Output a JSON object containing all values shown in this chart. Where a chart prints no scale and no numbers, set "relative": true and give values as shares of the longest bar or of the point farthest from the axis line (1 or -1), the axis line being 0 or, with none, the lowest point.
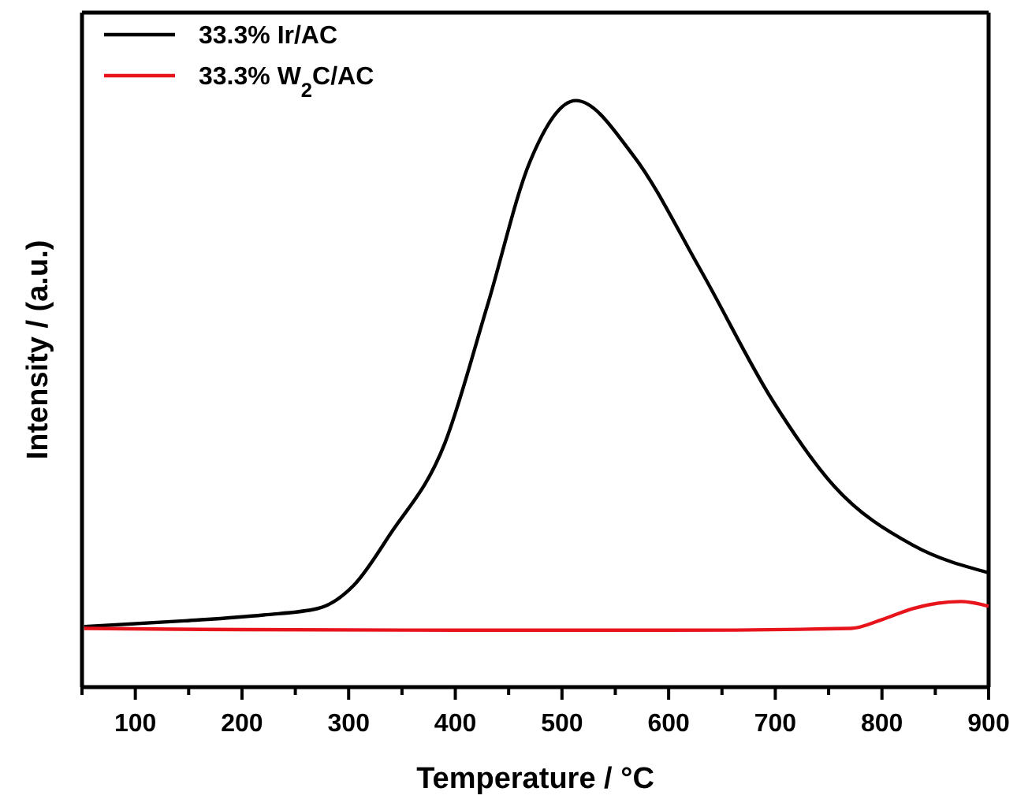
{
  "chart_data": {
    "type": "line",
    "xlabel": "Temperature / °C",
    "ylabel": "Intensity / (a.u.)",
    "relative": true,
    "xlim": [
      50,
      900
    ],
    "xticks": [
      {
        "value": 50,
        "label": null
      },
      100,
      {
        "value": 150,
        "label": null
      },
      200,
      {
        "value": 250,
        "label": null
      },
      300,
      {
        "value": 350,
        "label": null
      },
      400,
      {
        "value": 450,
        "label": null
      },
      500,
      {
        "value": 550,
        "label": null
      },
      600,
      {
        "value": 650,
        "label": null
      },
      700,
      {
        "value": 750,
        "label": null
      },
      800,
      {
        "value": 850,
        "label": null
      },
      900
    ],
    "legend": "top left",
    "grid": false,
    "line_style": "solid",
    "marker": "none",
    "series": [
      {
        "name": "33.3% Ir/AC",
        "color": "#000000",
        "x": [
          52,
          146,
          220,
          271,
          305,
          339,
          390,
          430,
          470,
          513,
          567,
          630,
          698,
          755,
          829,
          900
        ],
        "values": [
          0.103,
          0.113,
          0.123,
          0.134,
          0.174,
          0.261,
          0.415,
          0.65,
          0.896,
          1.0,
          0.906,
          0.711,
          0.487,
          0.343,
          0.242,
          0.195
        ]
      },
      {
        "name": "33.3% W$_{2}$C/AC",
        "color": "#e8141c",
        "x": [
          52,
          200,
          400,
          600,
          771,
          800,
          829,
          874,
          900
        ],
        "values": [
          0.1,
          0.098,
          0.097,
          0.097,
          0.1,
          0.115,
          0.134,
          0.146,
          0.138
        ]
      }
    ]
  }
}
